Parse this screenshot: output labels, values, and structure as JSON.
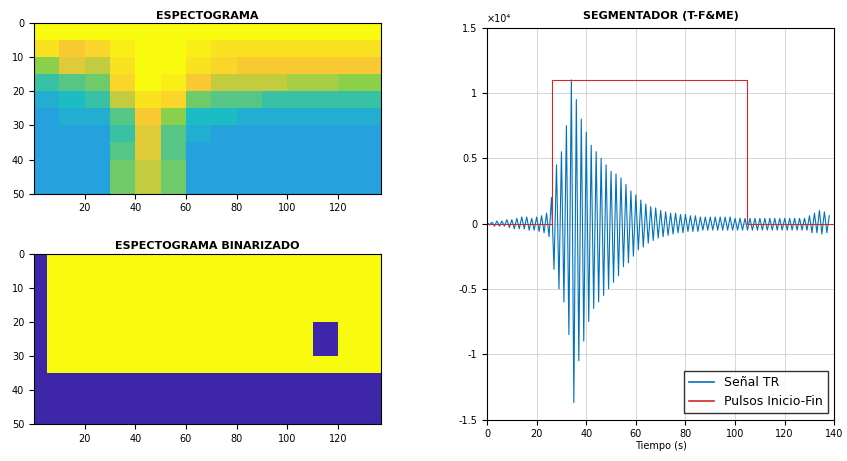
{
  "chart_data": [
    {
      "type": "heatmap",
      "title": "ESPECTOGRAMA",
      "x_edges": [
        0,
        10,
        20,
        30,
        40,
        50,
        60,
        70,
        80,
        90,
        100,
        110,
        120,
        130,
        137
      ],
      "y_edges": [
        0,
        5,
        10,
        15,
        20,
        25,
        30,
        35,
        40,
        45,
        50
      ],
      "cells": [
        [
          1,
          1,
          1,
          1,
          1,
          1,
          1,
          1,
          1,
          1,
          1,
          1,
          1,
          1
        ],
        [
          0.9,
          0.8,
          0.85,
          0.95,
          1,
          1,
          0.95,
          0.9,
          0.9,
          0.9,
          0.9,
          0.9,
          0.9,
          0.9
        ],
        [
          0.6,
          0.75,
          0.7,
          0.9,
          1,
          1,
          0.9,
          0.85,
          0.8,
          0.8,
          0.8,
          0.8,
          0.8,
          0.8
        ],
        [
          0.45,
          0.5,
          0.55,
          0.85,
          1,
          0.95,
          0.8,
          0.7,
          0.7,
          0.7,
          0.65,
          0.65,
          0.6,
          0.6
        ],
        [
          0.35,
          0.4,
          0.45,
          0.7,
          0.9,
          0.85,
          0.55,
          0.5,
          0.5,
          0.45,
          0.45,
          0.45,
          0.45,
          0.45
        ],
        [
          0.3,
          0.35,
          0.35,
          0.5,
          0.8,
          0.6,
          0.4,
          0.4,
          0.35,
          0.35,
          0.35,
          0.35,
          0.35,
          0.35
        ],
        [
          0.3,
          0.3,
          0.3,
          0.45,
          0.75,
          0.5,
          0.35,
          0.3,
          0.3,
          0.3,
          0.3,
          0.3,
          0.3,
          0.3
        ],
        [
          0.3,
          0.3,
          0.3,
          0.5,
          0.75,
          0.5,
          0.3,
          0.3,
          0.3,
          0.3,
          0.3,
          0.3,
          0.3,
          0.3
        ],
        [
          0.3,
          0.3,
          0.3,
          0.55,
          0.7,
          0.55,
          0.3,
          0.3,
          0.3,
          0.3,
          0.3,
          0.3,
          0.3,
          0.3
        ],
        [
          0.3,
          0.3,
          0.3,
          0.55,
          0.7,
          0.55,
          0.3,
          0.3,
          0.3,
          0.3,
          0.3,
          0.3,
          0.3,
          0.3
        ]
      ],
      "xlim": [
        0,
        137
      ],
      "ylim": [
        50,
        0
      ],
      "xticks": [
        20,
        40,
        60,
        80,
        100,
        120
      ],
      "yticks": [
        0,
        10,
        20,
        30,
        40,
        50
      ],
      "grid": false
    },
    {
      "type": "heatmap",
      "title": "ESPECTOGRAMA BINARIZADO",
      "x_edges": [
        0,
        5,
        10,
        20,
        30,
        40,
        50,
        60,
        70,
        80,
        90,
        100,
        110,
        120,
        130,
        137
      ],
      "y_edges": [
        0,
        5,
        10,
        15,
        20,
        25,
        30,
        35,
        50
      ],
      "cells": [
        [
          0,
          1,
          1,
          1,
          1,
          1,
          1,
          1,
          1,
          1,
          1,
          1,
          1,
          1,
          1
        ],
        [
          0,
          1,
          1,
          1,
          1,
          1,
          1,
          1,
          1,
          1,
          1,
          1,
          1,
          1,
          1
        ],
        [
          0,
          1,
          1,
          1,
          1,
          1,
          1,
          1,
          1,
          1,
          1,
          1,
          1,
          1,
          1
        ],
        [
          0,
          1,
          1,
          1,
          1,
          1,
          1,
          1,
          1,
          1,
          1,
          1,
          1,
          1,
          1
        ],
        [
          0,
          1,
          1,
          1,
          1,
          1,
          1,
          1,
          1,
          1,
          1,
          1,
          0,
          1,
          1
        ],
        [
          0,
          1,
          1,
          1,
          1,
          1,
          1,
          1,
          1,
          1,
          1,
          1,
          0,
          1,
          1
        ],
        [
          0,
          1,
          1,
          1,
          1,
          1,
          1,
          1,
          1,
          1,
          1,
          1,
          1,
          1,
          1
        ],
        [
          0,
          0,
          0,
          0,
          0,
          0,
          0,
          0,
          0,
          0,
          0,
          0,
          0,
          0,
          0
        ]
      ],
      "xlim": [
        0,
        137
      ],
      "ylim": [
        50,
        0
      ],
      "xticks": [
        20,
        40,
        60,
        80,
        100,
        120
      ],
      "yticks": [
        0,
        10,
        20,
        30,
        40,
        50
      ],
      "grid": false
    },
    {
      "type": "line",
      "title": "SEGMENTADOR (T-F&ME)",
      "x_label": "Tiempo (s)",
      "annotation": "×10⁴",
      "series": [
        {
          "name": "Señal TR",
          "color": "#0072bd",
          "x": [
            0,
            1,
            2,
            3,
            4,
            5,
            6,
            7,
            8,
            9,
            10,
            11,
            12,
            13,
            14,
            15,
            16,
            17,
            18,
            19,
            20,
            21,
            22,
            23,
            24,
            25,
            26,
            27,
            28,
            29,
            30,
            31,
            32,
            33,
            34,
            35,
            36,
            37,
            38,
            39,
            40,
            41,
            42,
            43,
            44,
            45,
            46,
            47,
            48,
            49,
            50,
            51,
            52,
            53,
            54,
            55,
            56,
            57,
            58,
            59,
            60,
            61,
            62,
            63,
            64,
            65,
            66,
            67,
            68,
            69,
            70,
            71,
            72,
            73,
            74,
            75,
            76,
            77,
            78,
            79,
            80,
            81,
            82,
            83,
            84,
            85,
            86,
            87,
            88,
            89,
            90,
            91,
            92,
            93,
            94,
            95,
            96,
            97,
            98,
            99,
            100,
            101,
            102,
            103,
            104,
            105,
            106,
            107,
            108,
            109,
            110,
            111,
            112,
            113,
            114,
            115,
            116,
            117,
            118,
            119,
            120,
            121,
            122,
            123,
            124,
            125,
            126,
            127,
            128,
            129,
            130,
            131,
            132,
            133,
            134,
            135,
            136,
            137,
            138
          ],
          "values": [
            0.01,
            -0.01,
            0.01,
            -0.02,
            0.02,
            -0.02,
            0.02,
            -0.02,
            0.03,
            -0.03,
            0.03,
            -0.04,
            0.04,
            -0.04,
            0.05,
            -0.04,
            0.05,
            -0.05,
            0.04,
            -0.05,
            0.05,
            -0.06,
            0.06,
            -0.07,
            0.08,
            -0.1,
            0.2,
            -0.35,
            0.45,
            -0.5,
            0.55,
            -0.6,
            0.75,
            -0.85,
            1.1,
            -1.37,
            0.95,
            -1.05,
            0.8,
            -0.9,
            0.7,
            -0.75,
            0.6,
            -0.65,
            0.55,
            -0.6,
            0.5,
            -0.55,
            0.45,
            -0.5,
            0.4,
            -0.45,
            0.38,
            -0.4,
            0.35,
            -0.33,
            0.3,
            -0.3,
            0.25,
            -0.25,
            0.22,
            -0.2,
            0.18,
            -0.18,
            0.15,
            -0.15,
            0.13,
            -0.13,
            0.12,
            -0.11,
            0.1,
            -0.1,
            0.09,
            -0.09,
            0.08,
            -0.08,
            0.08,
            -0.07,
            0.07,
            -0.07,
            0.07,
            -0.06,
            0.06,
            -0.06,
            0.06,
            -0.06,
            0.05,
            -0.05,
            0.05,
            -0.05,
            0.05,
            -0.05,
            0.05,
            -0.05,
            0.05,
            -0.05,
            0.05,
            -0.05,
            0.05,
            -0.05,
            0.04,
            -0.05,
            0.04,
            -0.05,
            0.04,
            -0.05,
            0.04,
            -0.05,
            0.04,
            -0.05,
            0.04,
            -0.05,
            0.04,
            -0.05,
            0.04,
            -0.05,
            0.04,
            -0.05,
            0.04,
            -0.05,
            0.04,
            -0.05,
            0.04,
            -0.05,
            0.04,
            -0.05,
            0.04,
            -0.05,
            0.04,
            -0.05,
            0.06,
            -0.07,
            0.08,
            -0.07,
            0.1,
            -0.08,
            0.09,
            -0.07,
            0.06
          ]
        },
        {
          "name": "Pulsos Inicio-Fin",
          "color": "#d62728",
          "x": [
            0,
            26,
            26,
            105,
            105,
            140
          ],
          "values": [
            0,
            0,
            1.1,
            1.1,
            0,
            0
          ]
        }
      ],
      "xlim": [
        0,
        140
      ],
      "ylim": [
        -1.5,
        1.5
      ],
      "xticks": [
        0,
        20,
        40,
        60,
        80,
        100,
        120,
        140
      ],
      "yticks": [
        -1.5,
        -1,
        -0.5,
        0,
        0.5,
        1,
        1.5
      ],
      "grid": true,
      "legend": "lower right"
    }
  ]
}
